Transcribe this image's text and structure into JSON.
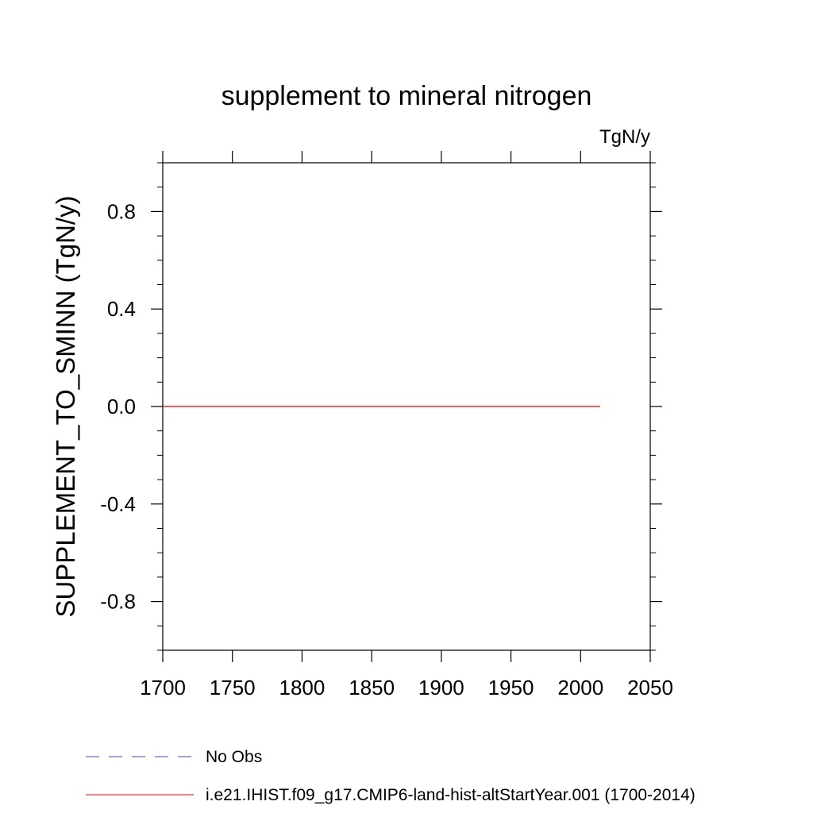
{
  "chart_data": {
    "type": "line",
    "title": "supplement to mineral nitrogen",
    "units": "TgN/y",
    "ylabel": "SUPPLEMENT_TO_SMINN  (TgN/y)",
    "xlabel": "",
    "xlim": [
      1700,
      2050
    ],
    "ylim": [
      -1.0,
      1.0
    ],
    "xticks": [
      1700,
      1750,
      1800,
      1850,
      1900,
      1950,
      2000,
      2050
    ],
    "xtick_labels": [
      "1700",
      "1750",
      "1800",
      "1850",
      "1900",
      "1950",
      "2000",
      "2050"
    ],
    "yticks": [
      0.8,
      0.4,
      0.0,
      -0.4,
      -0.8
    ],
    "ytick_labels": [
      "0.8",
      "0.4",
      "0.0",
      "-0.4",
      "-0.8"
    ],
    "grid": false,
    "legend_position": "bottom",
    "series": [
      {
        "name": "i.e21.IHIST.f09_g17.CMIP6-land-hist-altStartYear.001 (1700-2014)",
        "color": "#ff0000",
        "style": "solid",
        "x": [
          1700,
          2014
        ],
        "y": [
          0.0,
          0.0
        ]
      }
    ],
    "legend": [
      {
        "label": "No Obs",
        "color": "#4b3fd1",
        "style": "dashed"
      },
      {
        "label": "i.e21.IHIST.f09_g17.CMIP6-land-hist-altStartYear.001 (1700-2014)",
        "color": "#ff0000",
        "style": "solid"
      }
    ]
  }
}
